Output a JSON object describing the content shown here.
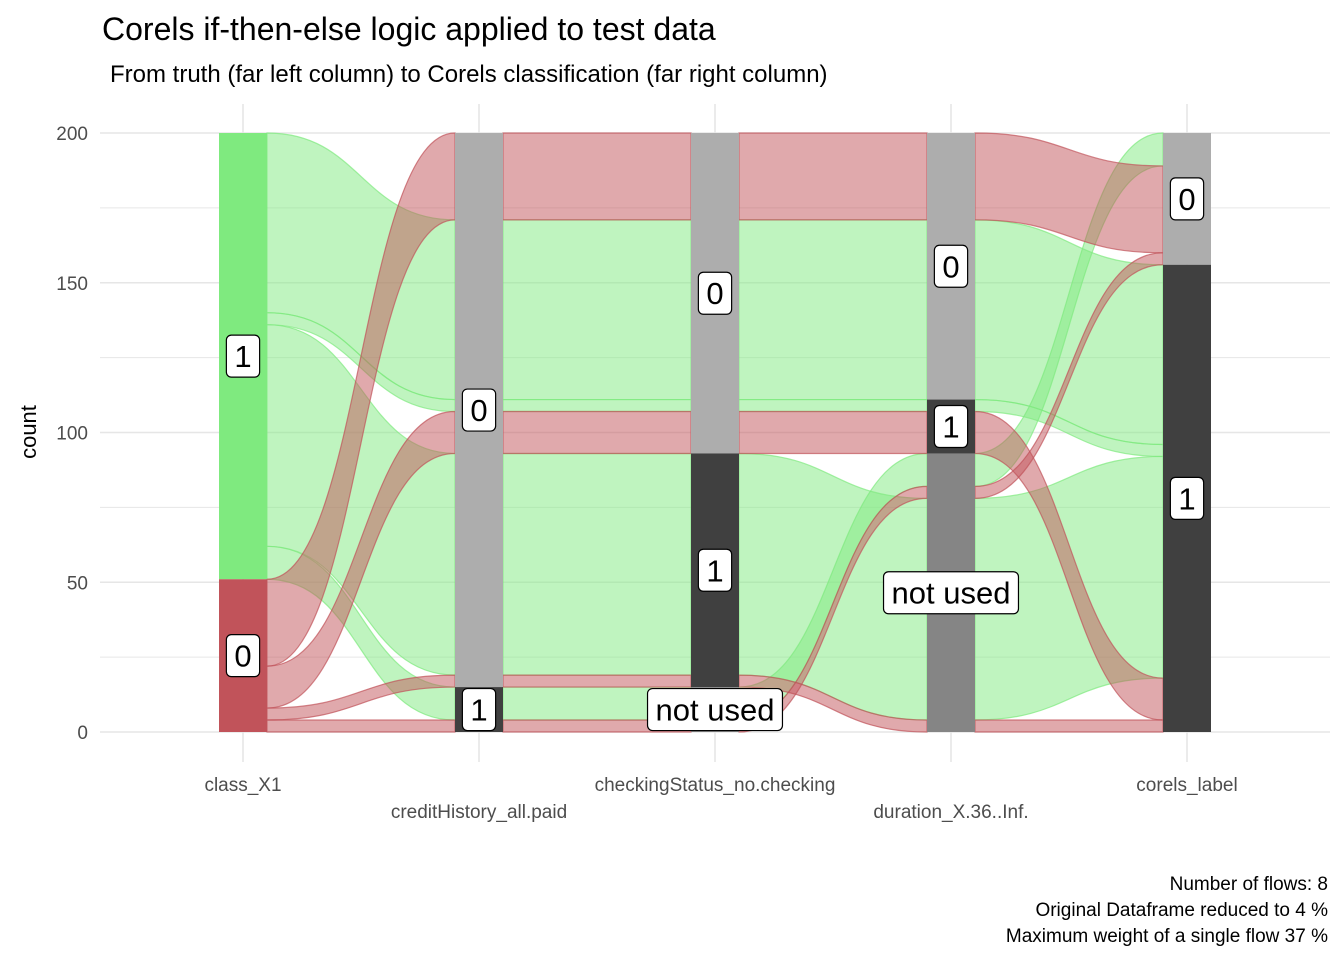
{
  "chart_data": {
    "type": "alluvial",
    "title": "Corels if-then-else logic applied to test data",
    "subtitle": "From truth (far left column) to Corels classification (far right column)",
    "xlabel": "",
    "ylabel": "count",
    "ylim": [
      0,
      200
    ],
    "y_ticks": [
      0,
      50,
      100,
      150,
      200
    ],
    "axes": [
      "class_X1",
      "creditHistory_all.paid",
      "checkingStatus_no.checking",
      "duration_X.36..Inf.",
      "corels_label"
    ],
    "total": 200,
    "fill_legend": [
      {
        "value": "1",
        "color": "#7FEA7F"
      },
      {
        "value": "0",
        "color": "#C1535A"
      }
    ],
    "flows": [
      {
        "class_X1": "1",
        "creditHistory_all.paid": "0",
        "checkingStatus_no.checking": "1",
        "duration_X.36..Inf.": "not used",
        "corels_label": "1",
        "count": 74
      },
      {
        "class_X1": "1",
        "creditHistory_all.paid": "0",
        "checkingStatus_no.checking": "0",
        "duration_X.36..Inf.": "1",
        "corels_label": "1",
        "count": 4
      },
      {
        "class_X1": "1",
        "creditHistory_all.paid": "0",
        "checkingStatus_no.checking": "0",
        "duration_X.36..Inf.": "0",
        "corels_label": "1",
        "count": 60
      },
      {
        "class_X1": "1",
        "creditHistory_all.paid": "1",
        "checkingStatus_no.checking": "not used",
        "duration_X.36..Inf.": "not used",
        "corels_label": "0",
        "count": 11
      },
      {
        "class_X1": "0",
        "creditHistory_all.paid": "0",
        "checkingStatus_no.checking": "1",
        "duration_X.36..Inf.": "not used",
        "corels_label": "1",
        "count": 4
      },
      {
        "class_X1": "0",
        "creditHistory_all.paid": "0",
        "checkingStatus_no.checking": "0",
        "duration_X.36..Inf.": "1",
        "corels_label": "1",
        "count": 14
      },
      {
        "class_X1": "0",
        "creditHistory_all.paid": "0",
        "checkingStatus_no.checking": "0",
        "duration_X.36..Inf.": "0",
        "corels_label": "0",
        "count": 29
      },
      {
        "class_X1": "0",
        "creditHistory_all.paid": "1",
        "checkingStatus_no.checking": "not used",
        "duration_X.36..Inf.": "not used",
        "corels_label": "0",
        "count": 4
      }
    ],
    "stratum_order": [
      "0",
      "1",
      "not used"
    ],
    "stratum_colors": {
      "class_X1": {
        "1": "#7FEA7F",
        "0": "#C1535A"
      },
      "default": {
        "0": "#ADADAD",
        "1": "#404040",
        "not used": "#858585"
      }
    },
    "caption": [
      "Number of flows: 8",
      "Original Dataframe reduced to 4 %",
      "Maximum weight of a single flow 37 %"
    ]
  }
}
